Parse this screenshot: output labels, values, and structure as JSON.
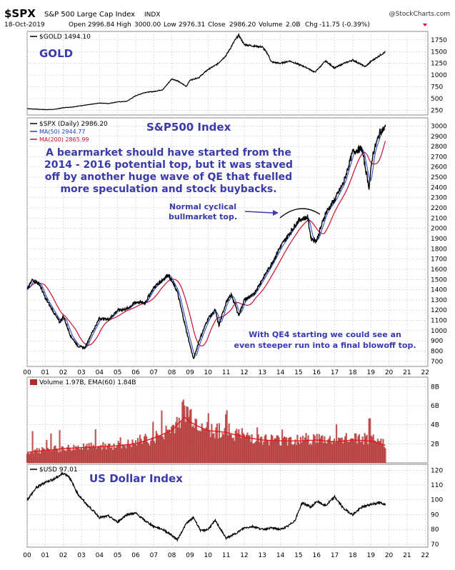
{
  "header": {
    "symbol": "$SPX",
    "name": "S&P 500 Large Cap Index",
    "exchange": "INDX",
    "copyright": "@StockCharts.com",
    "date": "18-Oct-2019",
    "open_label": "Open",
    "open": "2996.84",
    "high_label": "High",
    "high": "3000.00",
    "low_label": "Low",
    "low": "2976.31",
    "close_label": "Close",
    "close": "2986.20",
    "volume_label": "Volume",
    "volume": "2.0B",
    "chg_label": "Chg",
    "chg": "-11.75 (-0.39%)"
  },
  "colors": {
    "price": "#000000",
    "ma_short": "#1f3fbf",
    "ma_long": "#c8102e",
    "annotation": "#3a3aa8",
    "volume": "#b02a2a",
    "grid": "#c8c8c8"
  },
  "x_ticks": [
    "00",
    "01",
    "02",
    "03",
    "04",
    "05",
    "06",
    "07",
    "08",
    "09",
    "10",
    "11",
    "12",
    "13",
    "14",
    "15",
    "16",
    "17",
    "18",
    "19",
    "20",
    "21",
    "22"
  ],
  "chart_data": [
    {
      "type": "line",
      "panel": "gold",
      "legend": "$GOLD 1494.10",
      "title": "GOLD",
      "y_ticks": [
        250,
        500,
        750,
        1000,
        1250,
        1500,
        1750
      ],
      "ylim": [
        150,
        1930
      ],
      "x": [
        2000,
        2000.5,
        2001,
        2001.5,
        2002,
        2002.5,
        2003,
        2003.5,
        2004,
        2004.5,
        2005,
        2005.5,
        2006,
        2006.5,
        2007,
        2007.5,
        2008,
        2008.3,
        2008.8,
        2009,
        2009.5,
        2010,
        2010.5,
        2011,
        2011.5,
        2011.7,
        2012,
        2012.5,
        2013,
        2013.3,
        2013.5,
        2014,
        2014.5,
        2015,
        2015.5,
        2015.9,
        2016.5,
        2017,
        2017.5,
        2018,
        2018.7,
        2019,
        2019.5,
        2019.8
      ],
      "y": [
        285,
        275,
        265,
        270,
        305,
        320,
        350,
        375,
        405,
        395,
        430,
        440,
        560,
        630,
        650,
        690,
        920,
        880,
        760,
        890,
        950,
        1120,
        1230,
        1420,
        1750,
        1850,
        1650,
        1620,
        1600,
        1450,
        1280,
        1250,
        1300,
        1230,
        1150,
        1060,
        1300,
        1150,
        1250,
        1320,
        1180,
        1290,
        1420,
        1494
      ]
    },
    {
      "type": "line",
      "panel": "spx",
      "title": "S&P500 Index",
      "legend": [
        "$SPX (Daily) 2986.20",
        "MA(50) 2944.77",
        "MA(200) 2865.99"
      ],
      "series_names": [
        "$SPX (Daily)",
        "MA(50)",
        "MA(200)"
      ],
      "y_ticks": [
        700,
        800,
        900,
        1000,
        1100,
        1200,
        1300,
        1400,
        1500,
        1600,
        1700,
        1800,
        1900,
        2000,
        2100,
        2200,
        2300,
        2400,
        2500,
        2600,
        2700,
        2800,
        2900,
        3000
      ],
      "ylim": [
        650,
        3080
      ],
      "x": [
        2000,
        2000.3,
        2000.7,
        2001,
        2001.4,
        2001.8,
        2002,
        2002.4,
        2002.8,
        2003.2,
        2003.5,
        2004,
        2004.5,
        2005,
        2005.5,
        2006,
        2006.5,
        2007,
        2007.5,
        2007.8,
        2008.3,
        2008.8,
        2009.2,
        2009.5,
        2010,
        2010.4,
        2010.6,
        2011,
        2011.3,
        2011.7,
        2012,
        2012.5,
        2013,
        2013.5,
        2014,
        2014.5,
        2015,
        2015.5,
        2015.7,
        2016,
        2016.5,
        2017,
        2017.5,
        2018,
        2018.5,
        2018.9,
        2019.1,
        2019.5,
        2019.8
      ],
      "y": [
        1400,
        1500,
        1450,
        1320,
        1200,
        1080,
        1140,
        950,
        850,
        830,
        950,
        1120,
        1110,
        1200,
        1210,
        1280,
        1270,
        1420,
        1500,
        1550,
        1380,
        1000,
        720,
        900,
        1120,
        1200,
        1050,
        1280,
        1350,
        1150,
        1300,
        1350,
        1500,
        1650,
        1820,
        1950,
        2080,
        2110,
        1900,
        1880,
        2150,
        2280,
        2450,
        2750,
        2780,
        2400,
        2720,
        2940,
        2986
      ],
      "annotations": [
        "A bearmarket should have started from the",
        "2014 - 2016 potential top, but it was staved",
        "off by another huge wave of QE that fuelled",
        "more speculation and stock buybacks.",
        "Normal cyclical",
        "bullmarket top.",
        "With QE4 starting we could see an",
        "even steeper run into a final blowoff top."
      ]
    },
    {
      "type": "bar",
      "panel": "volume",
      "legend": "Volume 1.97B, EMA(60) 1.84B",
      "series_names": [
        "Volume",
        "EMA(60)"
      ],
      "y_ticks": [
        "2B",
        "4B",
        "6B",
        "8B"
      ],
      "ylim": [
        0,
        9
      ],
      "x": [
        2000,
        2001,
        2002,
        2003,
        2004,
        2005,
        2006,
        2007,
        2008,
        2008.7,
        2009,
        2009.5,
        2010,
        2011,
        2012,
        2013,
        2014,
        2015,
        2016,
        2017,
        2018,
        2019,
        2019.8
      ],
      "values": [
        1.1,
        1.3,
        1.5,
        1.6,
        1.7,
        1.8,
        2.0,
        2.5,
        3.5,
        5.5,
        5.0,
        4.0,
        3.5,
        3.3,
        2.8,
        2.5,
        2.3,
        2.4,
        2.5,
        2.3,
        2.5,
        2.4,
        1.97
      ],
      "ema": [
        1.1,
        1.3,
        1.5,
        1.6,
        1.7,
        1.8,
        2.0,
        2.6,
        3.4,
        4.8,
        4.3,
        3.8,
        3.4,
        3.2,
        2.7,
        2.4,
        2.3,
        2.3,
        2.4,
        2.2,
        2.4,
        2.3,
        1.84
      ]
    },
    {
      "type": "line",
      "panel": "usd",
      "legend": "$USD 97.01",
      "title": "US Dollar Index",
      "y_ticks": [
        70,
        80,
        90,
        100,
        110,
        120
      ],
      "ylim": [
        68,
        124
      ],
      "x": [
        2000,
        2000.5,
        2001,
        2001.5,
        2002,
        2002.3,
        2002.8,
        2003.2,
        2003.7,
        2004,
        2004.5,
        2005,
        2005.5,
        2006,
        2006.5,
        2007,
        2007.5,
        2008,
        2008.3,
        2008.8,
        2009.2,
        2009.6,
        2010,
        2010.4,
        2011,
        2011.5,
        2012,
        2012.5,
        2013,
        2013.5,
        2014,
        2014.4,
        2014.8,
        2015.2,
        2015.7,
        2016,
        2016.5,
        2017,
        2017.5,
        2018,
        2018.5,
        2019,
        2019.5,
        2019.8
      ],
      "y": [
        100,
        108,
        112,
        114,
        118,
        116,
        104,
        98,
        92,
        88,
        89,
        85,
        90,
        91,
        86,
        82,
        80,
        76,
        73,
        84,
        88,
        79,
        80,
        86,
        74,
        77,
        81,
        82,
        80,
        81,
        80,
        82,
        86,
        98,
        95,
        99,
        96,
        102,
        94,
        90,
        95,
        97,
        98,
        97
      ]
    }
  ]
}
